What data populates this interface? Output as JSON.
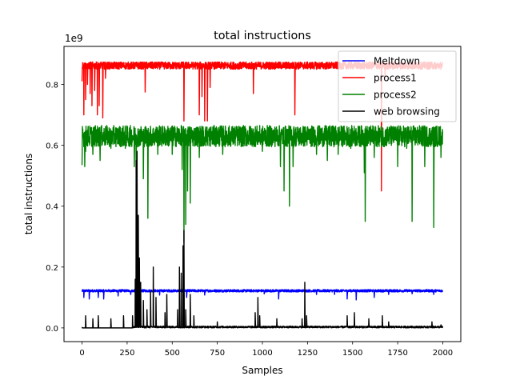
{
  "chart_data": {
    "type": "line",
    "title": "total instructions",
    "xlabel": "Samples",
    "ylabel": "total instructions",
    "y_offset_label": "1e9",
    "xlim": [
      -100,
      2100
    ],
    "ylim": [
      -0.045,
      0.925
    ],
    "x_ticks": [
      0,
      250,
      500,
      750,
      1000,
      1250,
      1500,
      1750,
      2000
    ],
    "x_tick_labels": [
      "0",
      "250",
      "500",
      "750",
      "1000",
      "1250",
      "1500",
      "1750",
      "2000"
    ],
    "y_ticks": [
      0.0,
      0.2,
      0.4,
      0.6,
      0.8
    ],
    "y_tick_labels": [
      "0.0",
      "0.2",
      "0.4",
      "0.6",
      "0.8"
    ],
    "legend_position": "top-right",
    "grid": false,
    "sample_count": 2000,
    "series": [
      {
        "name": "Meltdown",
        "color": "#0000ff",
        "baseline": 0.122,
        "noise": 0.004,
        "events": [
          {
            "x": 10,
            "y": 0.1
          },
          {
            "x": 40,
            "y": 0.095
          },
          {
            "x": 90,
            "y": 0.1
          },
          {
            "x": 120,
            "y": 0.095
          },
          {
            "x": 200,
            "y": 0.105
          },
          {
            "x": 270,
            "y": 0.11
          },
          {
            "x": 430,
            "y": 0.108
          },
          {
            "x": 580,
            "y": 0.1
          },
          {
            "x": 680,
            "y": 0.108
          },
          {
            "x": 1010,
            "y": 0.112
          },
          {
            "x": 1090,
            "y": 0.095
          },
          {
            "x": 1300,
            "y": 0.11
          },
          {
            "x": 1400,
            "y": 0.11
          },
          {
            "x": 1470,
            "y": 0.095
          },
          {
            "x": 1520,
            "y": 0.092
          },
          {
            "x": 1620,
            "y": 0.1
          },
          {
            "x": 1700,
            "y": 0.11
          },
          {
            "x": 1830,
            "y": 0.112
          },
          {
            "x": 1950,
            "y": 0.11
          }
        ]
      },
      {
        "name": "process1",
        "color": "#ff0000",
        "baseline": 0.862,
        "noise": 0.012,
        "events": [
          {
            "x": 0,
            "y": 0.81
          },
          {
            "x": 5,
            "y": 0.86
          },
          {
            "x": 10,
            "y": 0.7
          },
          {
            "x": 20,
            "y": 0.75
          },
          {
            "x": 30,
            "y": 0.8
          },
          {
            "x": 45,
            "y": 0.77
          },
          {
            "x": 55,
            "y": 0.73
          },
          {
            "x": 70,
            "y": 0.78
          },
          {
            "x": 85,
            "y": 0.7
          },
          {
            "x": 95,
            "y": 0.73
          },
          {
            "x": 115,
            "y": 0.69
          },
          {
            "x": 130,
            "y": 0.82
          },
          {
            "x": 350,
            "y": 0.775
          },
          {
            "x": 565,
            "y": 0.68
          },
          {
            "x": 650,
            "y": 0.7
          },
          {
            "x": 665,
            "y": 0.76
          },
          {
            "x": 680,
            "y": 0.68
          },
          {
            "x": 695,
            "y": 0.68
          },
          {
            "x": 710,
            "y": 0.79
          },
          {
            "x": 950,
            "y": 0.77
          },
          {
            "x": 1180,
            "y": 0.7
          },
          {
            "x": 1660,
            "y": 0.45
          },
          {
            "x": 1680,
            "y": 0.82
          }
        ]
      },
      {
        "name": "process2",
        "color": "#008000",
        "baseline": 0.63,
        "noise": 0.035,
        "events": [
          {
            "x": 0,
            "y": 0.535
          },
          {
            "x": 15,
            "y": 0.53
          },
          {
            "x": 20,
            "y": 0.58
          },
          {
            "x": 60,
            "y": 0.57
          },
          {
            "x": 100,
            "y": 0.55
          },
          {
            "x": 160,
            "y": 0.59
          },
          {
            "x": 240,
            "y": 0.59
          },
          {
            "x": 290,
            "y": 0.53
          },
          {
            "x": 300,
            "y": 0.51
          },
          {
            "x": 340,
            "y": 0.49
          },
          {
            "x": 365,
            "y": 0.36
          },
          {
            "x": 420,
            "y": 0.57
          },
          {
            "x": 500,
            "y": 0.57
          },
          {
            "x": 555,
            "y": 0.52
          },
          {
            "x": 565,
            "y": 0.28
          },
          {
            "x": 575,
            "y": 0.34
          },
          {
            "x": 585,
            "y": 0.45
          },
          {
            "x": 600,
            "y": 0.41
          },
          {
            "x": 650,
            "y": 0.56
          },
          {
            "x": 780,
            "y": 0.57
          },
          {
            "x": 1000,
            "y": 0.58
          },
          {
            "x": 1100,
            "y": 0.53
          },
          {
            "x": 1120,
            "y": 0.45
          },
          {
            "x": 1150,
            "y": 0.4
          },
          {
            "x": 1170,
            "y": 0.53
          },
          {
            "x": 1300,
            "y": 0.57
          },
          {
            "x": 1360,
            "y": 0.55
          },
          {
            "x": 1420,
            "y": 0.57
          },
          {
            "x": 1490,
            "y": 0.59
          },
          {
            "x": 1565,
            "y": 0.51
          },
          {
            "x": 1570,
            "y": 0.35
          },
          {
            "x": 1620,
            "y": 0.56
          },
          {
            "x": 1750,
            "y": 0.53
          },
          {
            "x": 1800,
            "y": 0.59
          },
          {
            "x": 1830,
            "y": 0.35
          },
          {
            "x": 1900,
            "y": 0.53
          },
          {
            "x": 1950,
            "y": 0.33
          },
          {
            "x": 1990,
            "y": 0.56
          }
        ]
      },
      {
        "name": "web browsing",
        "color": "#000000",
        "baseline": 0.003,
        "noise": 0.003,
        "events": [
          {
            "x": 0,
            "y": 0.0
          },
          {
            "x": 20,
            "y": 0.04
          },
          {
            "x": 60,
            "y": 0.03
          },
          {
            "x": 90,
            "y": 0.04
          },
          {
            "x": 160,
            "y": 0.03
          },
          {
            "x": 230,
            "y": 0.04
          },
          {
            "x": 280,
            "y": 0.04
          },
          {
            "x": 295,
            "y": 0.16
          },
          {
            "x": 300,
            "y": 0.55
          },
          {
            "x": 305,
            "y": 0.58
          },
          {
            "x": 308,
            "y": 0.32
          },
          {
            "x": 312,
            "y": 0.37
          },
          {
            "x": 318,
            "y": 0.23
          },
          {
            "x": 325,
            "y": 0.15
          },
          {
            "x": 340,
            "y": 0.09
          },
          {
            "x": 360,
            "y": 0.06
          },
          {
            "x": 380,
            "y": 0.12
          },
          {
            "x": 395,
            "y": 0.2
          },
          {
            "x": 410,
            "y": 0.1
          },
          {
            "x": 460,
            "y": 0.05
          },
          {
            "x": 470,
            "y": 0.11
          },
          {
            "x": 530,
            "y": 0.06
          },
          {
            "x": 540,
            "y": 0.2
          },
          {
            "x": 550,
            "y": 0.18
          },
          {
            "x": 560,
            "y": 0.27
          },
          {
            "x": 565,
            "y": 0.32
          },
          {
            "x": 575,
            "y": 0.06
          },
          {
            "x": 600,
            "y": 0.11
          },
          {
            "x": 620,
            "y": 0.04
          },
          {
            "x": 750,
            "y": 0.02
          },
          {
            "x": 960,
            "y": 0.05
          },
          {
            "x": 975,
            "y": 0.1
          },
          {
            "x": 985,
            "y": 0.04
          },
          {
            "x": 1080,
            "y": 0.03
          },
          {
            "x": 1220,
            "y": 0.03
          },
          {
            "x": 1235,
            "y": 0.15
          },
          {
            "x": 1245,
            "y": 0.04
          },
          {
            "x": 1470,
            "y": 0.04
          },
          {
            "x": 1510,
            "y": 0.05
          },
          {
            "x": 1590,
            "y": 0.03
          },
          {
            "x": 1665,
            "y": 0.04
          },
          {
            "x": 1700,
            "y": 0.02
          },
          {
            "x": 1940,
            "y": 0.02
          },
          {
            "x": 1990,
            "y": 0.01
          }
        ]
      }
    ]
  }
}
